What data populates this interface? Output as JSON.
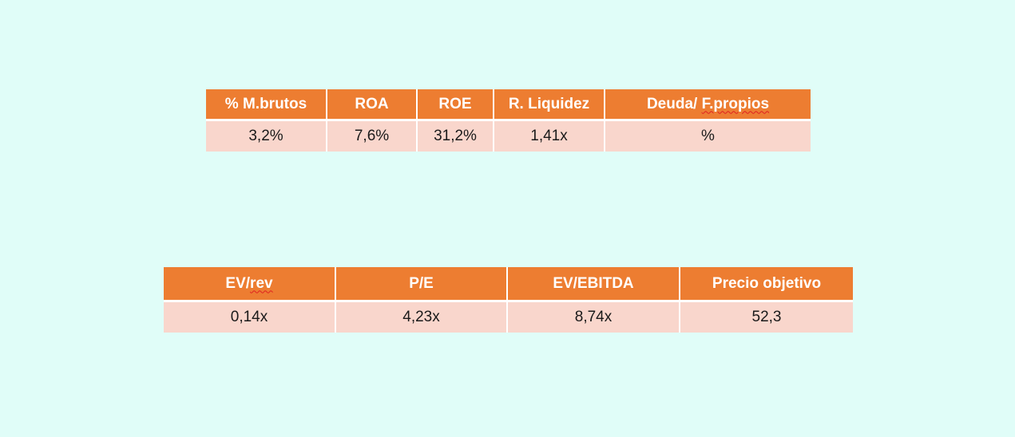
{
  "ratios_table": {
    "headers": [
      "% M.brutos",
      "ROA",
      "ROE",
      "R. Liquidez",
      "Deuda/ F.propios"
    ],
    "values": [
      "3,2%",
      "7,6%",
      "31,2%",
      "1,41x",
      "%"
    ]
  },
  "valuation_table": {
    "headers": [
      "EV/rev",
      "P/E",
      "EV/EBITDA",
      "Precio objetivo"
    ],
    "values": [
      "0,14x",
      "4,23x",
      "8,74x",
      "52,3"
    ]
  },
  "colors": {
    "background": "#e0fdf8",
    "header_fill": "#ed7d31",
    "cell_fill": "#f9d6cc"
  }
}
